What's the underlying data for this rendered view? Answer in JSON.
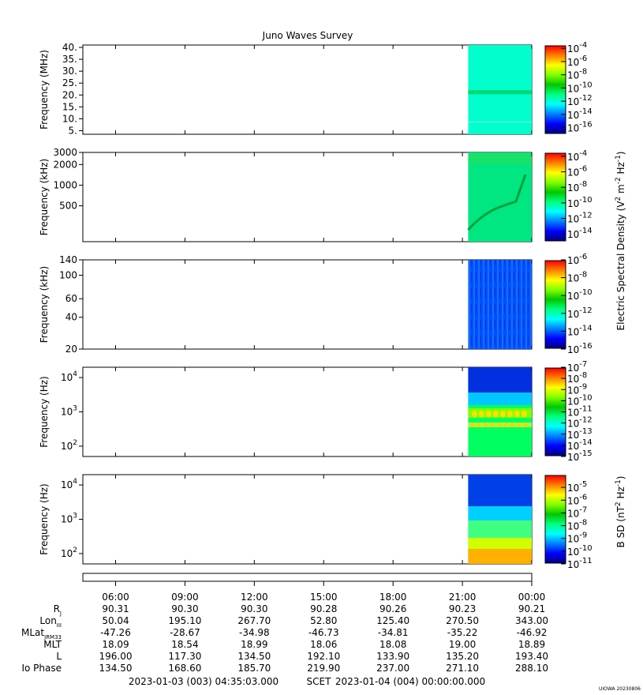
{
  "title": "Juno Waves Survey",
  "watermark": "UIOWA 20230806",
  "colors": {
    "colormap": [
      "#00007f",
      "#0000ff",
      "#0080ff",
      "#00ffff",
      "#00ff80",
      "#00c800",
      "#80ff00",
      "#ffff00",
      "#ff8000",
      "#ff0000"
    ],
    "background": "#ffffff",
    "axis": "#000000"
  },
  "chart_data": [
    {
      "type": "heatmap",
      "ylabel": "Frequency (MHz)",
      "yscale": "linear",
      "ylim": [
        3.5,
        41
      ],
      "yticks": [
        "5.",
        "10.",
        "15.",
        "20.",
        "25.",
        "30.",
        "35.",
        "40."
      ],
      "colorbar": {
        "ticks": [
          "-4",
          "-6",
          "-8",
          "-10",
          "-12",
          "-14",
          "-16"
        ],
        "range": [
          -17,
          -3.5
        ],
        "base": "10"
      },
      "data_start": "2023-01-03 21:15"
    },
    {
      "type": "heatmap",
      "ylabel": "Frequency (kHz)",
      "yscale": "log",
      "ylim": [
        150,
        3000
      ],
      "yticks": [
        "3000",
        "2000",
        "1000",
        "500"
      ],
      "colorbar": {
        "ticks": [
          "-4",
          "-6",
          "-8",
          "-10",
          "-12",
          "-14"
        ],
        "range": [
          -15,
          -3.5
        ],
        "base": "10"
      },
      "data_start": "2023-01-03 21:15"
    },
    {
      "type": "heatmap",
      "ylabel": "Frequency (kHz)",
      "yscale": "log",
      "ylim": [
        20,
        140
      ],
      "yticks": [
        "140",
        "100",
        "60",
        "40",
        "20"
      ],
      "colorbar": {
        "ticks": [
          "-6",
          "-8",
          "-10",
          "-12",
          "-14",
          "-16"
        ],
        "range": [
          -16,
          -6
        ],
        "base": "10"
      },
      "data_start": "2023-01-03 21:15"
    },
    {
      "type": "heatmap",
      "ylabel": "Frequency (Hz)",
      "yscale": "log",
      "ylim": [
        50,
        20000
      ],
      "yticks": [
        {
          "base": "10",
          "exp": "4"
        },
        {
          "base": "10",
          "exp": "3"
        },
        {
          "base": "10",
          "exp": "2"
        }
      ],
      "colorbar": {
        "ticks": [
          "-7",
          "-8",
          "-9",
          "-10",
          "-11",
          "-12",
          "-13",
          "-14",
          "-15"
        ],
        "range": [
          -15,
          -7
        ],
        "base": "10"
      },
      "data_start": "2023-01-03 21:15"
    },
    {
      "type": "heatmap",
      "ylabel": "Frequency (Hz)",
      "yscale": "log",
      "ylim": [
        50,
        20000
      ],
      "yticks": [
        {
          "base": "10",
          "exp": "4"
        },
        {
          "base": "10",
          "exp": "3"
        },
        {
          "base": "10",
          "exp": "2"
        }
      ],
      "colorbar": {
        "ticks": [
          "-5",
          "-6",
          "-7",
          "-8",
          "-9",
          "-10",
          "-11"
        ],
        "range": [
          -11,
          -4
        ],
        "base": "10"
      },
      "data_start": "2023-01-03 21:15"
    }
  ],
  "colorbar_titles": {
    "electric": "Electric Spectral Density (V",
    "electric_sup1": "2",
    "electric_mid": " m",
    "electric_sup2": "-2",
    "electric_mid2": " Hz",
    "electric_sup3": "-1",
    "electric_end": ")",
    "magnetic": "B SD (nT",
    "magnetic_sup1": "2",
    "magnetic_mid": " Hz",
    "magnetic_sup2": "-1",
    "magnetic_end": ")"
  },
  "time_axis": {
    "start": "2023-01-03 04:35:03",
    "end": "2023-01-04 00:00:00",
    "labels": [
      "06:00",
      "09:00",
      "12:00",
      "15:00",
      "18:00",
      "21:00",
      "00:00"
    ],
    "label_hours": [
      6,
      9,
      12,
      15,
      18,
      21,
      24
    ]
  },
  "ephemeris": {
    "rows": [
      {
        "label": "R",
        "sub": "J",
        "values": [
          "90.31",
          "90.30",
          "90.30",
          "90.28",
          "90.26",
          "90.23",
          "90.21"
        ]
      },
      {
        "label": "Lon",
        "sub": "III",
        "values": [
          "50.04",
          "195.10",
          "267.70",
          "52.80",
          "125.40",
          "270.50",
          "343.00"
        ]
      },
      {
        "label": "MLat",
        "sub": "JRM33",
        "values": [
          "-47.26",
          "-28.67",
          "-34.98",
          "-46.73",
          "-34.81",
          "-35.22",
          "-46.92"
        ]
      },
      {
        "label": "MLT",
        "sub": "",
        "values": [
          "18.09",
          "18.54",
          "18.99",
          "18.06",
          "18.08",
          "19.00",
          "18.89"
        ]
      },
      {
        "label": "L",
        "sub": "",
        "values": [
          "196.00",
          "117.30",
          "134.50",
          "192.10",
          "133.90",
          "135.20",
          "193.40"
        ]
      },
      {
        "label": "Io Phase",
        "sub": "",
        "values": [
          "134.50",
          "168.60",
          "185.70",
          "219.90",
          "237.00",
          "271.10",
          "288.10"
        ]
      }
    ]
  },
  "footer": {
    "start": "2023-01-03 (003) 04:35:03.000",
    "mid": "SCET",
    "end": "2023-01-04 (004) 00:00:00.000"
  }
}
